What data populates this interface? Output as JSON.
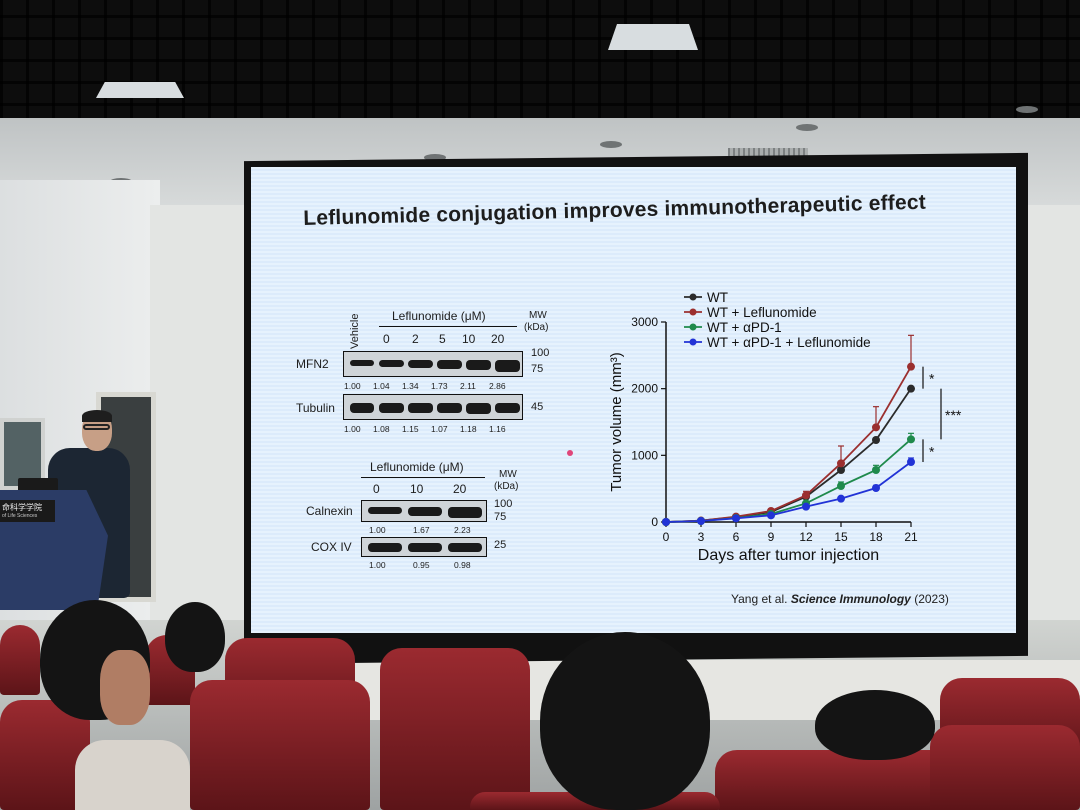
{
  "slide": {
    "title": "Leflunomide conjugation improves immunotherapeutic effect",
    "citation_authors": "Yang et al. ",
    "citation_journal": "Science Immunology",
    "citation_year": " (2023)"
  },
  "blot1": {
    "vehicle_label": "Vehicle",
    "treatment_label": "Leflunomide (μM)",
    "doses": [
      "0",
      "2",
      "5",
      "10",
      "20"
    ],
    "mw_label": "MW",
    "kda_label": "(kDa)",
    "rows": [
      {
        "name": "MFN2",
        "markers": [
          "100",
          "75"
        ],
        "quant": [
          "1.00",
          "1.04",
          "1.34",
          "1.73",
          "2.11",
          "2.86"
        ]
      },
      {
        "name": "Tubulin",
        "markers": [
          "45"
        ],
        "quant": [
          "1.00",
          "1.08",
          "1.15",
          "1.07",
          "1.18",
          "1.16"
        ]
      }
    ]
  },
  "blot2": {
    "treatment_label": "Leflunomide (μM)",
    "doses": [
      "0",
      "10",
      "20"
    ],
    "mw_label": "MW",
    "kda_label": "(kDa)",
    "rows": [
      {
        "name": "Calnexin",
        "markers": [
          "100",
          "75"
        ],
        "quant": [
          "1.00",
          "1.67",
          "2.23"
        ]
      },
      {
        "name": "COX IV",
        "markers": [
          "25"
        ],
        "quant": [
          "1.00",
          "0.95",
          "0.98"
        ]
      }
    ]
  },
  "podium": {
    "label": "命科学学院",
    "sublabel": "of Life Sciences"
  },
  "chart_data": {
    "type": "line",
    "title": "",
    "xlabel": "Days after tumor injection",
    "ylabel": "Tumor volume (mm³)",
    "x": [
      0,
      3,
      6,
      9,
      12,
      15,
      18,
      21
    ],
    "xlim": [
      0,
      21
    ],
    "ylim": [
      0,
      3000
    ],
    "yticks": [
      0,
      1000,
      2000,
      3000
    ],
    "legend_position": "top-left",
    "series": [
      {
        "name": "WT",
        "color": "#2b2b2b",
        "values": [
          0,
          20,
          75,
          150,
          380,
          780,
          1230,
          2000
        ]
      },
      {
        "name": "WT + Leflunomide",
        "color": "#9b2f2f",
        "values": [
          0,
          20,
          80,
          165,
          400,
          880,
          1420,
          2330
        ],
        "error": [
          0,
          5,
          10,
          20,
          60,
          260,
          310,
          470
        ]
      },
      {
        "name": "WT + αPD-1",
        "color": "#1f8a4c",
        "values": [
          0,
          15,
          60,
          120,
          280,
          540,
          780,
          1240
        ],
        "error": [
          0,
          4,
          8,
          15,
          30,
          60,
          70,
          90
        ]
      },
      {
        "name": "WT + αPD-1 + Leflunomide",
        "color": "#2233d6",
        "values": [
          0,
          15,
          55,
          100,
          230,
          350,
          510,
          900
        ],
        "error": [
          0,
          3,
          6,
          10,
          20,
          30,
          40,
          60
        ]
      }
    ],
    "significance": [
      "*",
      "***",
      "*"
    ]
  }
}
